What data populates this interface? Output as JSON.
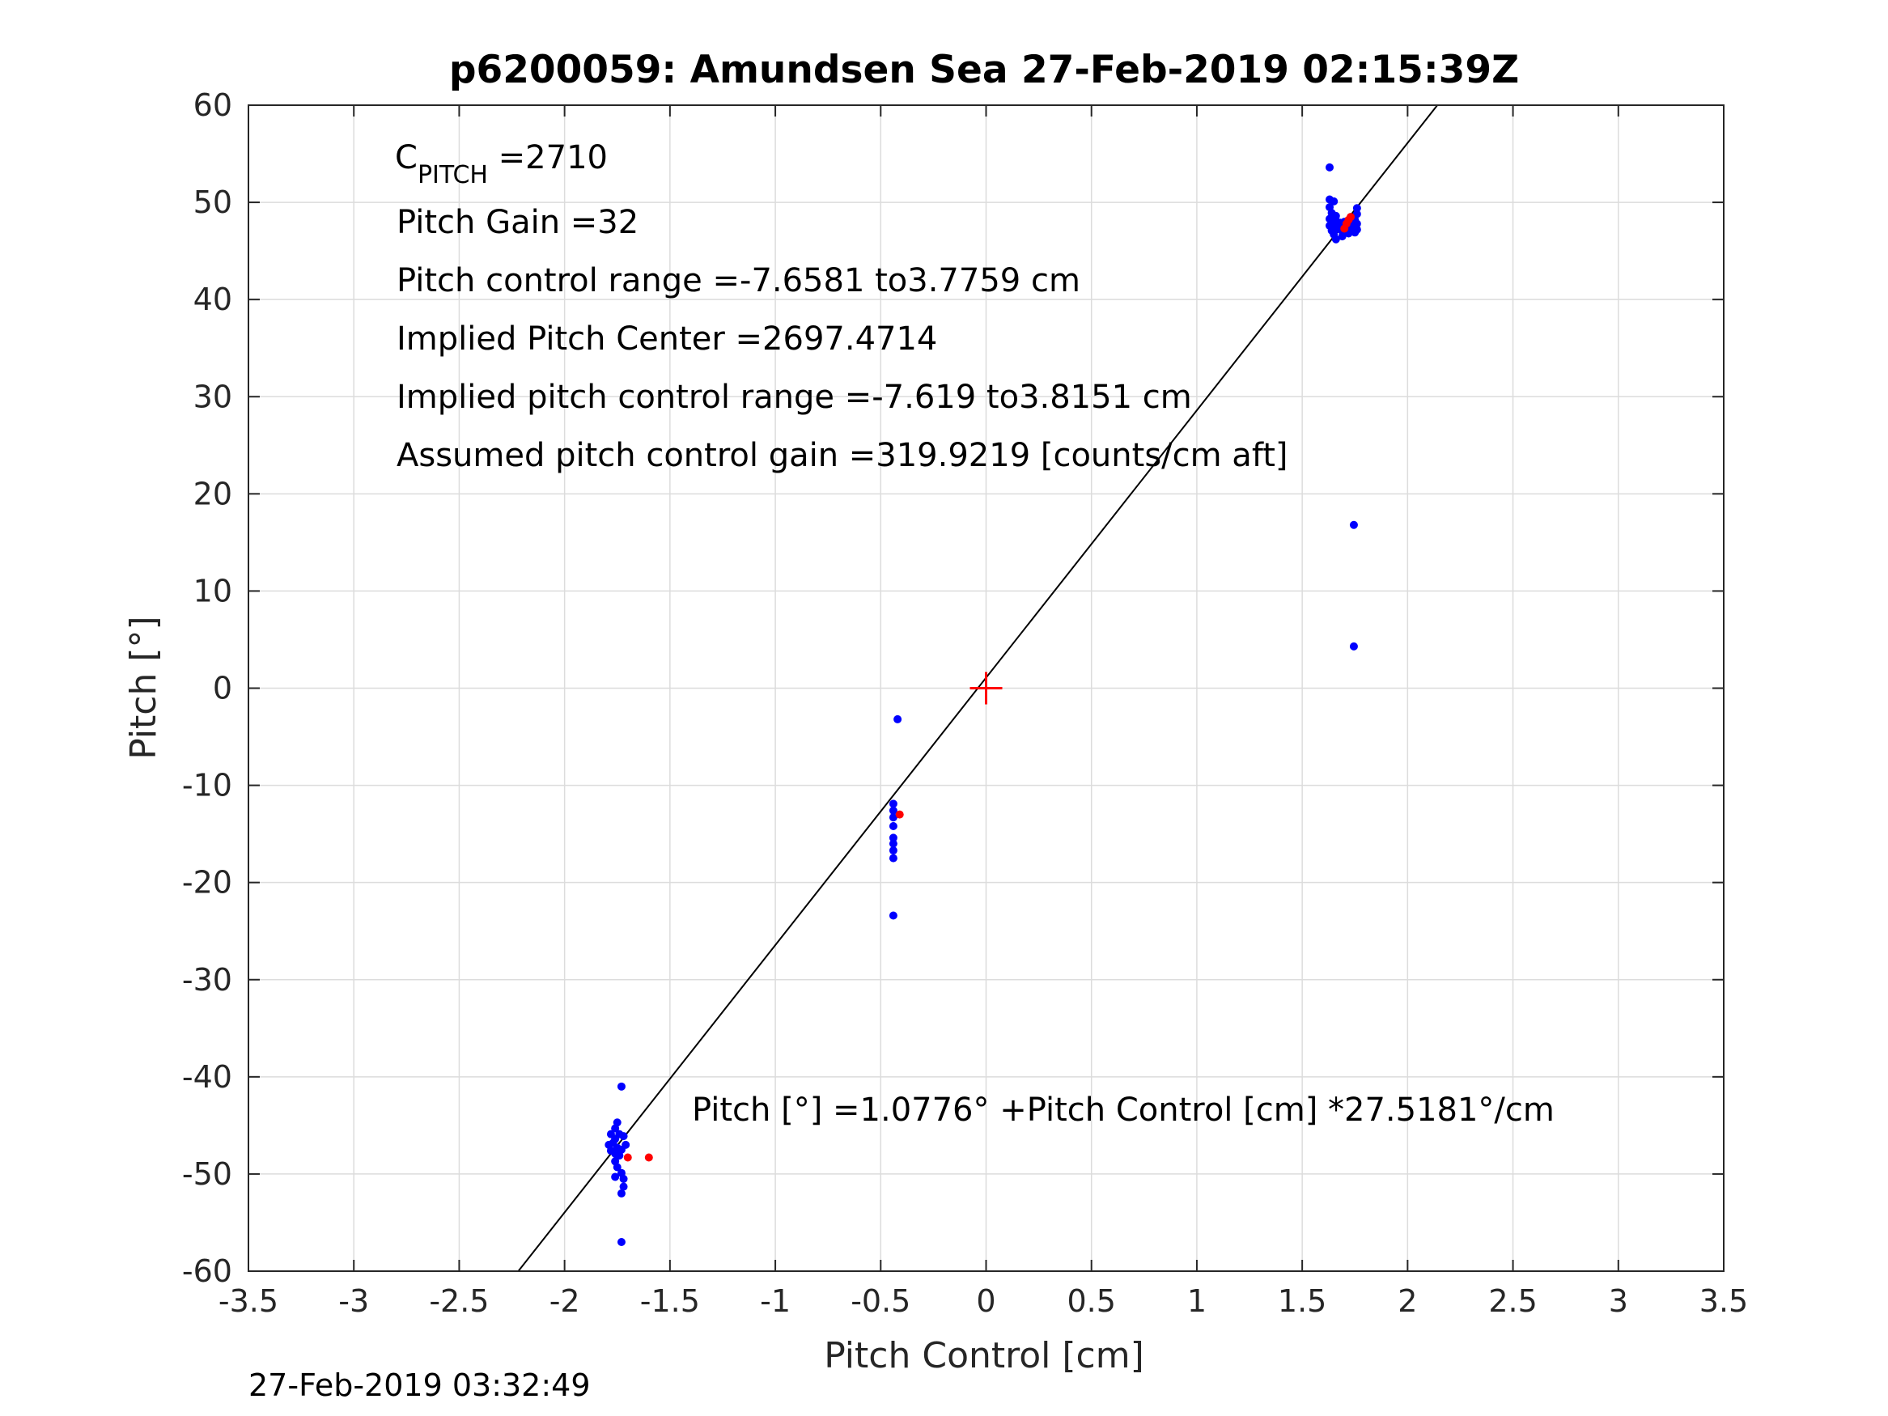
{
  "chart_data": {
    "type": "scatter",
    "title": "p6200059: Amundsen Sea 27-Feb-2019 02:15:39Z",
    "xlabel": "Pitch Control [cm]",
    "ylabel": "Pitch [°]",
    "xlim": [
      -3.5,
      3.5
    ],
    "ylim": [
      -60,
      60
    ],
    "xticks": [
      "-3.5",
      "-3",
      "-2.5",
      "-2",
      "-1.5",
      "-1",
      "-0.5",
      "0",
      "0.5",
      "1",
      "1.5",
      "2",
      "2.5",
      "3",
      "3.5"
    ],
    "xtick_values": [
      -3.5,
      -3,
      -2.5,
      -2,
      -1.5,
      -1,
      -0.5,
      0,
      0.5,
      1,
      1.5,
      2,
      2.5,
      3,
      3.5
    ],
    "yticks": [
      "60",
      "50",
      "40",
      "30",
      "20",
      "10",
      "0",
      "-10",
      "-20",
      "-30",
      "-40",
      "-50",
      "-60"
    ],
    "ytick_values": [
      60,
      50,
      40,
      30,
      20,
      10,
      0,
      -10,
      -20,
      -30,
      -40,
      -50,
      -60
    ],
    "grid": true,
    "fit_line": {
      "intercept": 1.0776,
      "slope": 27.5181
    },
    "center_marker": {
      "x": 0,
      "y": 0,
      "color": "#ff0000"
    },
    "annotations": {
      "c_pitch_label": "C",
      "c_pitch_sub": "PITCH",
      "c_pitch_value": " =2710",
      "line2": "Pitch Gain =32",
      "line3": "Pitch control range =-7.6581 to3.7759 cm",
      "line4": "Implied Pitch Center =2697.4714",
      "line5": "Implied pitch control range =-7.619 to3.8151 cm",
      "line6": "Assumed pitch control gain =319.9219 [counts/cm aft]",
      "equation": "Pitch [°] =1.0776° +Pitch Control [cm] *27.5181°/cm"
    },
    "series": [
      {
        "color": "#0000ff",
        "points": [
          [
            1.63,
            53.6
          ],
          [
            1.63,
            50.3
          ],
          [
            1.65,
            50.1
          ],
          [
            1.63,
            49.5
          ],
          [
            1.64,
            48.9
          ],
          [
            1.63,
            48.3
          ],
          [
            1.66,
            48.6
          ],
          [
            1.65,
            47.9
          ],
          [
            1.63,
            47.6
          ],
          [
            1.66,
            47.4
          ],
          [
            1.64,
            47.1
          ],
          [
            1.67,
            47.8
          ],
          [
            1.68,
            47.2
          ],
          [
            1.65,
            46.7
          ],
          [
            1.66,
            46.2
          ],
          [
            1.69,
            46.5
          ],
          [
            1.7,
            47.0
          ],
          [
            1.71,
            47.6
          ],
          [
            1.72,
            47.4
          ],
          [
            1.73,
            47.9
          ],
          [
            1.74,
            47.3
          ],
          [
            1.75,
            48.2
          ],
          [
            1.76,
            48.8
          ],
          [
            1.76,
            49.4
          ],
          [
            1.74,
            47.0
          ],
          [
            1.72,
            46.8
          ],
          [
            1.75,
            47.5
          ],
          [
            1.76,
            47.8
          ],
          [
            1.73,
            48.3
          ],
          [
            1.7,
            48.0
          ],
          [
            1.68,
            47.9
          ],
          [
            1.66,
            48.1
          ],
          [
            1.75,
            46.9
          ],
          [
            1.76,
            47.2
          ],
          [
            1.745,
            16.8
          ],
          [
            1.745,
            4.3
          ],
          [
            -0.42,
            -3.2
          ],
          [
            -0.44,
            -11.9
          ],
          [
            -0.44,
            -12.6
          ],
          [
            -0.44,
            -13.3
          ],
          [
            -0.44,
            -14.2
          ],
          [
            -0.44,
            -15.4
          ],
          [
            -0.44,
            -16.0
          ],
          [
            -0.44,
            -16.7
          ],
          [
            -0.44,
            -17.5
          ],
          [
            -0.44,
            -23.4
          ],
          [
            -1.73,
            -41.0
          ],
          [
            -1.75,
            -44.7
          ],
          [
            -1.76,
            -45.3
          ],
          [
            -1.78,
            -45.9
          ],
          [
            -1.74,
            -45.9
          ],
          [
            -1.76,
            -46.4
          ],
          [
            -1.72,
            -46.1
          ],
          [
            -1.79,
            -47.0
          ],
          [
            -1.77,
            -46.8
          ],
          [
            -1.75,
            -47.3
          ],
          [
            -1.73,
            -47.5
          ],
          [
            -1.71,
            -47.0
          ],
          [
            -1.78,
            -47.6
          ],
          [
            -1.76,
            -47.9
          ],
          [
            -1.74,
            -48.1
          ],
          [
            -1.76,
            -48.7
          ],
          [
            -1.75,
            -49.3
          ],
          [
            -1.76,
            -50.3
          ],
          [
            -1.73,
            -49.9
          ],
          [
            -1.72,
            -50.5
          ],
          [
            -1.72,
            -51.3
          ],
          [
            -1.73,
            -52.0
          ],
          [
            -1.73,
            -57.0
          ]
        ]
      },
      {
        "color": "#ff0000",
        "points": [
          [
            1.72,
            48.2
          ],
          [
            1.71,
            47.8
          ],
          [
            1.7,
            47.3
          ],
          [
            1.73,
            48.5
          ],
          [
            -0.41,
            -13.0
          ],
          [
            -1.7,
            -48.3
          ],
          [
            -1.6,
            -48.3
          ]
        ]
      }
    ]
  },
  "footer": {
    "timestamp": "27-Feb-2019 03:32:49"
  }
}
